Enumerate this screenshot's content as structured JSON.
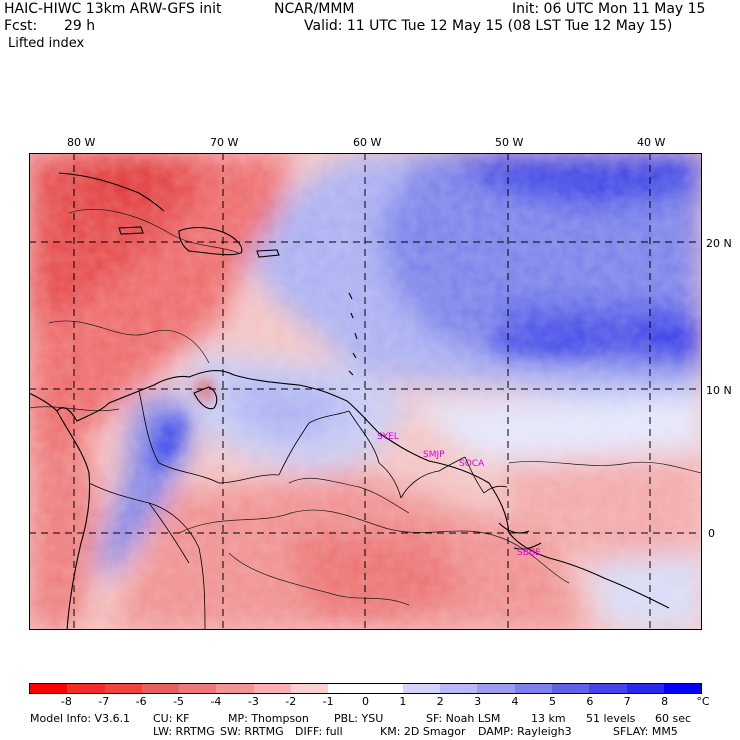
{
  "header": {
    "model_title": "HAIC-HIWC 13km ARW-GFS init",
    "org": "NCAR/MMM",
    "init": "Init: 06 UTC Mon 11 May 15",
    "fcst_label": "Fcst:",
    "fcst_value": "29 h",
    "valid": "Valid: 11 UTC Tue 12 May 15 (08 LST Tue 12 May 15)",
    "field_name": "Lifted index"
  },
  "map": {
    "longitude_labels": [
      "80 W",
      "70 W",
      "60 W",
      "50 W",
      "40 W"
    ],
    "latitude_labels": [
      "20 N",
      "10 N",
      "0"
    ],
    "sites": [
      "SYEL",
      "SMJP",
      "SOCA",
      "SBBE"
    ]
  },
  "colorbar": {
    "colors": [
      "#ff0000",
      "#f52a2a",
      "#ee4444",
      "#e95e5e",
      "#ee7777",
      "#f29595",
      "#f6b0b0",
      "#fbd0d0",
      "#ffffff",
      "#ffffff",
      "#d3d3fb",
      "#b8b8f5",
      "#9c9cf0",
      "#7f7fed",
      "#6161ea",
      "#4545ea",
      "#2828ee",
      "#0000ff"
    ],
    "labels": [
      "-8",
      "-7",
      "-6",
      "-5",
      "-4",
      "-3",
      "-2",
      "-1",
      "0",
      "1",
      "2",
      "3",
      "4",
      "5",
      "6",
      "7",
      "8"
    ],
    "unit": "°C"
  },
  "footer": {
    "line1": [
      "Model Info: V3.6.1",
      "CU: KF",
      "MP: Thompson",
      "PBL: YSU",
      "SF: Noah LSM",
      "13 km",
      "51 levels",
      "60 sec"
    ],
    "line2": [
      "LW: RRTMG",
      "SW: RRTMG",
      "DIFF: full",
      "KM: 2D Smagor",
      "DAMP: Rayleigh3",
      "SFLAY: MM5"
    ]
  }
}
